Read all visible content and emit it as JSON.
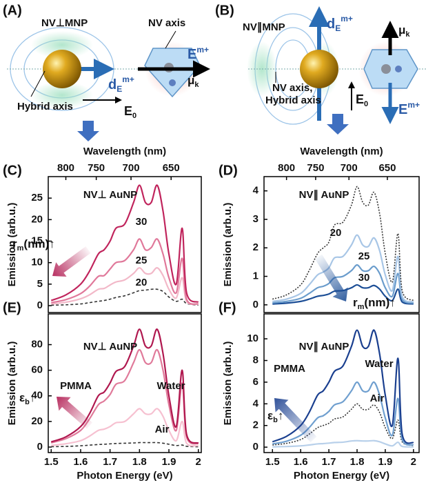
{
  "diagrams": [
    {
      "label": "(A)",
      "title": "NV⊥MNP",
      "nv_axis": "NV axis",
      "hybrid_axis": "Hybrid axis",
      "dipole": {
        "base": "d",
        "sub": "E",
        "sup": "m+"
      },
      "field": {
        "base": "E",
        "sup": "m+"
      },
      "moment": {
        "base": "μ",
        "sub": "k"
      },
      "incident": {
        "base": "E",
        "sub": "0"
      }
    },
    {
      "label": "(B)",
      "title": "NV∥MNP",
      "axis_note": [
        "NV axis,",
        "Hybrid axis"
      ],
      "dipole": {
        "base": "d",
        "sub": "E",
        "sup": "m+"
      },
      "field": {
        "base": "E",
        "sup": "m+"
      },
      "moment": {
        "base": "μ",
        "sub": "k"
      },
      "incident": {
        "base": "E",
        "sub": "0"
      }
    }
  ],
  "chart_data": [
    {
      "type": "line",
      "label": "(C)",
      "title": "NV⊥ AuNP",
      "ylabel": "Emission (arb.u.)",
      "x2label": "Wavelength (nm)",
      "x": [
        1.5,
        1.55,
        1.6,
        1.63,
        1.66,
        1.68,
        1.7,
        1.72,
        1.75,
        1.78,
        1.8,
        1.82,
        1.84,
        1.86,
        1.88,
        1.9,
        1.925,
        1.945,
        1.96,
        2.0
      ],
      "xlim": [
        1.49,
        2.01
      ],
      "ylim": [
        -1.6,
        30
      ],
      "yticks": [
        0,
        5,
        10,
        15,
        20,
        25
      ],
      "x2ticks": [
        800,
        750,
        700,
        650
      ],
      "annotation": {
        "text": "r",
        "sub": "m",
        "suffix": "(nm)↑"
      },
      "series": [
        {
          "name": "30",
          "color": "#c0245c",
          "values": [
            1.2,
            2.5,
            5,
            8,
            12,
            13,
            15,
            18,
            19,
            24,
            28,
            24,
            24,
            28,
            22,
            12,
            5,
            18,
            3,
            0.8
          ]
        },
        {
          "name": "25",
          "color": "#e0789a",
          "values": [
            0.7,
            1.4,
            2.8,
            4.5,
            6.8,
            7,
            8.5,
            10,
            10.5,
            13,
            15.5,
            13,
            13.5,
            15.5,
            12,
            6.5,
            3,
            11,
            1.5,
            0.4
          ]
        },
        {
          "name": "20",
          "color": "#f2b8c8",
          "values": [
            0.4,
            0.8,
            1.6,
            2.5,
            3.8,
            4,
            4.8,
            5.5,
            6,
            7.5,
            8.8,
            7.5,
            7.5,
            8.8,
            7,
            3.8,
            1.8,
            6.5,
            1,
            0.3
          ]
        },
        {
          "color": "#333333",
          "dash": "dashed",
          "values": [
            0.1,
            0.2,
            0.4,
            0.7,
            1,
            1.2,
            1.5,
            1.9,
            2.3,
            3,
            3.5,
            3.6,
            3.8,
            3.8,
            3.3,
            2,
            1,
            1.5,
            0.5,
            0.1
          ]
        }
      ]
    },
    {
      "type": "line",
      "label": "(D)",
      "title": "NV∥ AuNP",
      "ylabel": "Emission (arb.u.)",
      "x2label": "Wavelength (nm)",
      "x": [
        1.5,
        1.55,
        1.6,
        1.63,
        1.66,
        1.68,
        1.7,
        1.72,
        1.75,
        1.78,
        1.8,
        1.82,
        1.84,
        1.86,
        1.88,
        1.9,
        1.925,
        1.945,
        1.96,
        2.0
      ],
      "xlim": [
        1.47,
        2.02
      ],
      "ylim": [
        -0.27,
        4.5
      ],
      "yticks": [
        0,
        1,
        2,
        3,
        4
      ],
      "x2ticks": [
        800,
        750,
        700,
        650
      ],
      "annotation": {
        "text": "r",
        "sub": "m",
        "suffix": "(nm)↑"
      },
      "series": [
        {
          "color": "#333333",
          "dash": "dotted",
          "values": [
            0.2,
            0.35,
            0.7,
            1.2,
            1.8,
            2,
            2.2,
            2.8,
            2.9,
            3.5,
            4.15,
            3.6,
            3.5,
            3.95,
            3.2,
            1.8,
            0.8,
            2.5,
            0.5,
            0.15
          ]
        },
        {
          "name": "20",
          "color": "#a8c6e6",
          "values": [
            0.12,
            0.2,
            0.4,
            0.7,
            1.05,
            1.15,
            1.3,
            1.65,
            1.7,
            2.1,
            2.45,
            2.1,
            2.05,
            2.35,
            1.9,
            1.05,
            0.5,
            1.7,
            0.3,
            0.1
          ]
        },
        {
          "name": "25",
          "color": "#6a9ccc",
          "values": [
            0.07,
            0.12,
            0.23,
            0.4,
            0.6,
            0.65,
            0.75,
            0.95,
            1,
            1.2,
            1.4,
            1.2,
            1.2,
            1.35,
            1.1,
            0.6,
            0.3,
            1.1,
            0.2,
            0.06
          ]
        },
        {
          "name": "30",
          "color": "#1c4e96",
          "values": [
            0.03,
            0.06,
            0.12,
            0.2,
            0.3,
            0.33,
            0.38,
            0.48,
            0.5,
            0.6,
            0.7,
            0.6,
            0.6,
            0.68,
            0.55,
            0.3,
            0.15,
            0.55,
            0.1,
            0.03
          ]
        }
      ]
    },
    {
      "type": "line",
      "label": "(E)",
      "title": "NV⊥ AuNP",
      "ylabel": "Emission (arb.u.)",
      "xlabel": "Photon Energy (eV)",
      "x": [
        1.5,
        1.55,
        1.6,
        1.63,
        1.66,
        1.68,
        1.7,
        1.72,
        1.75,
        1.78,
        1.8,
        1.82,
        1.84,
        1.86,
        1.88,
        1.9,
        1.925,
        1.945,
        1.96,
        2.0
      ],
      "xlim": [
        1.49,
        2.01
      ],
      "ylim": [
        -4.3,
        104
      ],
      "xticks": [
        1.5,
        1.6,
        1.7,
        1.8,
        1.9,
        2
      ],
      "yticks": [
        0,
        20,
        40,
        60,
        80
      ],
      "annotation": {
        "text": "ε",
        "sub": "b",
        "suffix": "↑"
      },
      "series": [
        {
          "name": "PMMA",
          "color": "#b0184f",
          "values": [
            4,
            8,
            16,
            26,
            40,
            43,
            50,
            59,
            63,
            79,
            92,
            79,
            79,
            92,
            73,
            40,
            16,
            60,
            10,
            3
          ]
        },
        {
          "name": "Water",
          "color": "#e07a9a",
          "values": [
            3.3,
            6.6,
            13,
            22,
            33,
            36,
            41,
            49,
            52,
            66,
            76,
            66,
            66,
            76,
            60,
            33,
            13,
            50,
            8,
            2.5
          ]
        },
        {
          "name": "Air",
          "color": "#f6c0d0",
          "values": [
            1.3,
            2.6,
            5,
            8.5,
            13,
            14,
            16,
            19,
            20,
            26,
            30,
            26,
            26,
            30,
            24,
            13,
            5,
            20,
            3,
            1
          ]
        },
        {
          "color": "#333333",
          "dash": "dashed",
          "values": [
            0.3,
            0.5,
            1,
            1.5,
            2,
            2.2,
            2.5,
            2.8,
            3,
            3.2,
            3.5,
            3.5,
            3.5,
            3.5,
            3,
            2.2,
            1.2,
            1.6,
            0.6,
            0.2
          ]
        }
      ]
    },
    {
      "type": "line",
      "label": "(F)",
      "title": "NV∥ AuNP",
      "ylabel": "Emission (arb.u.)",
      "xlabel": "Photon Energy (eV)",
      "x": [
        1.5,
        1.55,
        1.6,
        1.63,
        1.66,
        1.68,
        1.7,
        1.72,
        1.75,
        1.78,
        1.8,
        1.82,
        1.84,
        1.86,
        1.88,
        1.9,
        1.925,
        1.945,
        1.96,
        2.0
      ],
      "xlim": [
        1.47,
        2.02
      ],
      "ylim": [
        -0.5,
        12.3
      ],
      "xticks": [
        1.5,
        1.6,
        1.7,
        1.8,
        1.9,
        2
      ],
      "yticks": [
        0,
        2,
        4,
        6,
        8,
        10
      ],
      "annotation": {
        "text": "ε",
        "sub": "b",
        "suffix": "↑"
      },
      "series": [
        {
          "name": "PMMA",
          "color": "#1a3f8f",
          "values": [
            0.5,
            1,
            2,
            3.2,
            4.8,
            5.2,
            6,
            7,
            7.5,
            9.3,
            10.8,
            9.3,
            9.3,
            10.8,
            8.6,
            4.8,
            2,
            8.2,
            1.2,
            0.4
          ]
        },
        {
          "name": "Water",
          "color": "#6f9fcf",
          "values": [
            0.3,
            0.55,
            1.1,
            1.8,
            2.7,
            2.9,
            3.3,
            3.9,
            4.2,
            5.2,
            6,
            5.2,
            5.2,
            6,
            4.8,
            2.7,
            1.1,
            4.5,
            0.7,
            0.2
          ]
        },
        {
          "color": "#333333",
          "dash": "dotted",
          "values": [
            0.2,
            0.35,
            0.7,
            1.2,
            1.8,
            2,
            2.2,
            2.6,
            2.8,
            3.5,
            4,
            3.5,
            3.5,
            3.9,
            3.2,
            1.8,
            0.8,
            2.5,
            0.5,
            0.15
          ]
        },
        {
          "name": "Air",
          "color": "#b8d0ea",
          "values": [
            0.03,
            0.06,
            0.12,
            0.2,
            0.3,
            0.33,
            0.37,
            0.43,
            0.46,
            0.57,
            0.6,
            0.57,
            0.57,
            0.6,
            0.5,
            0.3,
            0.12,
            0.45,
            0.07,
            0.02
          ]
        }
      ]
    }
  ]
}
